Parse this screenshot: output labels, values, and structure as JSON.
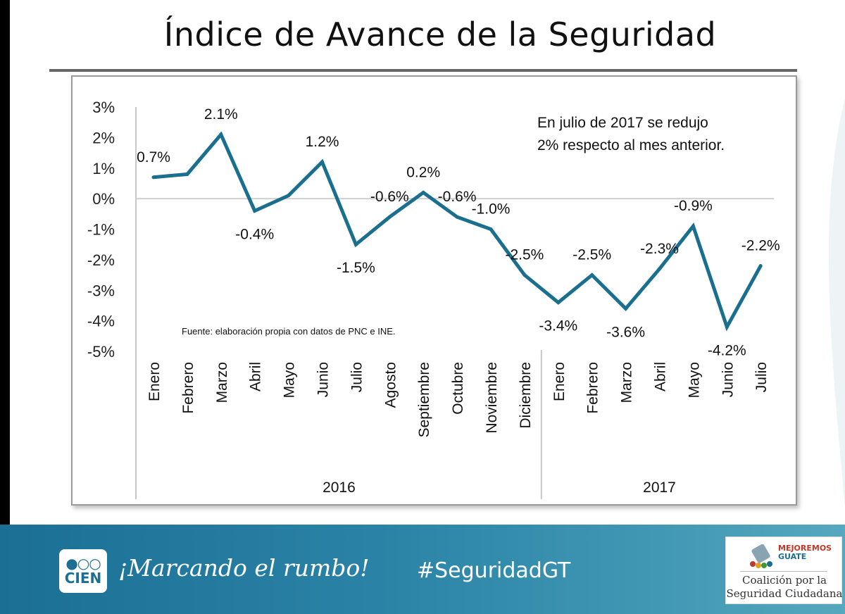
{
  "title": "Índice de Avance de la Seguridad",
  "chart_data": {
    "type": "line",
    "categories": [
      "Enero",
      "Febrero",
      "Marzo",
      "Abril",
      "Mayo",
      "Junio",
      "Julio",
      "Agosto",
      "Septiembre",
      "Octubre",
      "Noviembre",
      "Diciembre",
      "Enero",
      "Febrero",
      "Marzo",
      "Abril",
      "Mayo",
      "Junio",
      "Julio"
    ],
    "values": [
      0.7,
      0.8,
      2.1,
      -0.4,
      0.1,
      1.2,
      -1.5,
      -0.6,
      0.2,
      -0.6,
      -1.0,
      -2.5,
      -3.4,
      -2.5,
      -3.6,
      -2.3,
      -0.9,
      -4.2,
      -2.2
    ],
    "data_labels": [
      "0.7%",
      "",
      "2.1%",
      "-0.4%",
      "",
      "1.2%",
      "-1.5%",
      "-0.6%",
      "0.2%",
      "-0.6%",
      "-1.0%",
      "-2.5%",
      "-3.4%",
      "-2.5%",
      "-3.6%",
      "-2.3%",
      "-0.9%",
      "-4.2%",
      "-2.2%"
    ],
    "year_groups": [
      {
        "label": "2016",
        "start": 0,
        "end": 11
      },
      {
        "label": "2017",
        "start": 12,
        "end": 18
      }
    ],
    "ylim": [
      -5,
      3
    ],
    "yticks": [
      3,
      2,
      1,
      0,
      -1,
      -2,
      -3,
      -4,
      -5
    ],
    "ytick_labels": [
      "3%",
      "2%",
      "1%",
      "0%",
      "-1%",
      "-2%",
      "-3%",
      "-4%",
      "-5%"
    ],
    "line_color": "#1a6f8f",
    "annotation": "En julio de 2017 se redujo\n2% respecto al mes anterior.",
    "source": "Fuente: elaboración propia con datos de PNC e INE."
  },
  "footer": {
    "logo_word": "CIEN",
    "slogan": "¡Marcando el rumbo!",
    "hashtag": "#SeguridadGT",
    "partner_brand_1": "MEJOREMOS",
    "partner_brand_2": "GUATE",
    "partner_line_1": "Coalición por la",
    "partner_line_2": "Seguridad Ciudadana"
  },
  "colors": {
    "footer_blue": "#1b6f95",
    "line": "#1a6f8f"
  }
}
